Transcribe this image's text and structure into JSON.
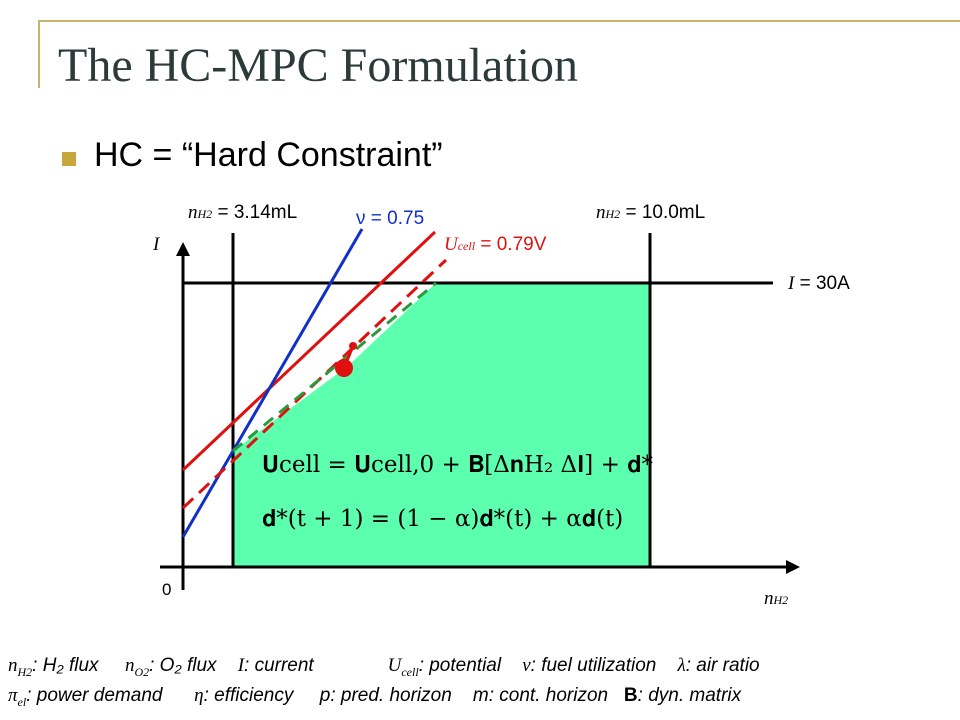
{
  "slide": {
    "title": "The HC-MPC Formulation",
    "bullet": "HC = “Hard Constraint”"
  },
  "diagram": {
    "labels": {
      "y_axis": "I",
      "x_axis": "n",
      "x_axis_sub": "H2",
      "origin": "0",
      "nh2_low_var": "n",
      "nh2_low_sub": "H2",
      "nh2_low_val": "= 3.14mL",
      "nh2_high_var": "n",
      "nh2_high_sub": "H2",
      "nh2_high_val": "= 10.0mL",
      "nu_val": "ν = 0.75",
      "ucell_var": "U",
      "ucell_sub": "cell",
      "ucell_val": "= 0.79V",
      "i_var": "I",
      "i_val": "= 30A"
    },
    "equation1": "𝐔cell = 𝐔cell,0 + 𝐁[Δ𝐧H₂ Δ𝐈] + 𝐝*",
    "equation2": "𝐝*(t + 1) = (1 − α)𝐝*(t) + α𝐝(t)",
    "colors": {
      "feasible_region": "#5cffad",
      "ucell_line": "#e01010",
      "nu_line": "#1030c8",
      "axis": "#000000",
      "title": "#2c3a3a",
      "accent": "#c7a63c"
    }
  },
  "legend": {
    "row1": [
      {
        "sym": "n",
        "sub": "H2",
        "text": ": H₂ flux"
      },
      {
        "sym": "n",
        "sub": "O2",
        "text": ": O₂ flux"
      },
      {
        "sym": "I",
        "sub": "",
        "text": ": current"
      },
      {
        "sym": "U",
        "sub": "cell",
        "text": ": potential"
      },
      {
        "sym": "ν",
        "sub": "",
        "text": ": fuel utilization"
      },
      {
        "sym": "λ",
        "sub": "",
        "text": ": air ratio"
      }
    ],
    "row2": [
      {
        "sym": "π",
        "sub": "el",
        "text": ": power demand"
      },
      {
        "sym": "η",
        "sub": "",
        "text": ": efficiency"
      },
      {
        "sym": "",
        "sub": "",
        "text": "p: pred. horizon"
      },
      {
        "sym": "",
        "sub": "",
        "text": "m: cont. horizon"
      },
      {
        "sym": "B",
        "sub": "",
        "text": ": dyn. matrix"
      }
    ]
  }
}
